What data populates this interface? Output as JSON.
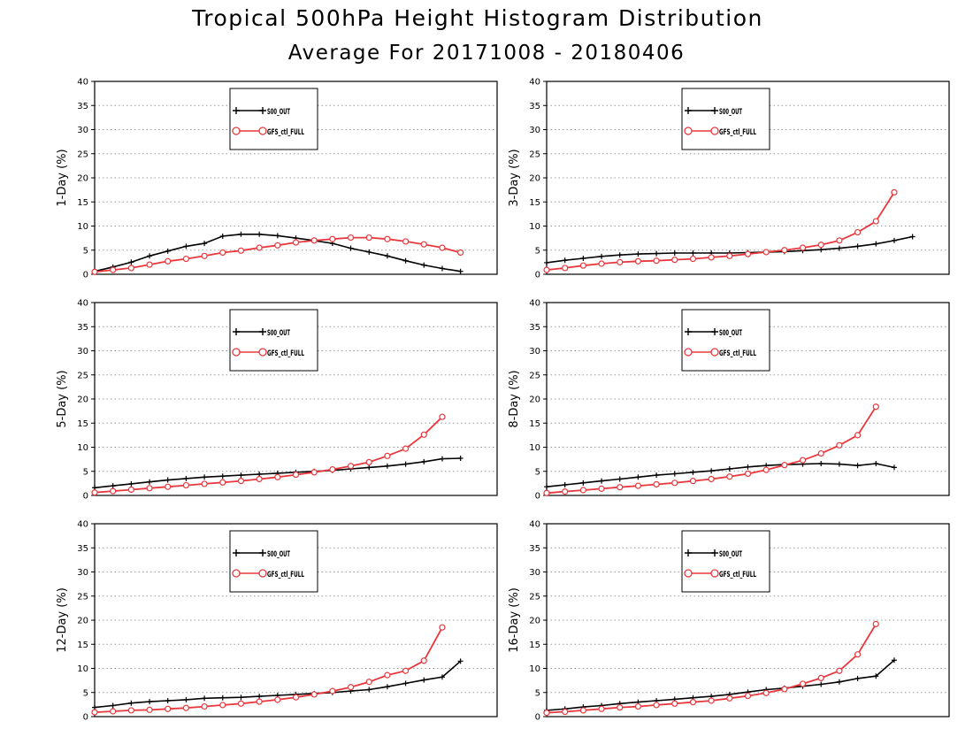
{
  "page": {
    "title": "Tropical 500hPa Height Histogram Distribution",
    "subtitle": "Average For 20171008 - 20180406"
  },
  "colors": {
    "series1": "#000000",
    "series2": "#e8383d",
    "grid": "#9a9a9a"
  },
  "chart_data": [
    {
      "type": "line",
      "ylabel": "1-Day (%)",
      "ylim": [
        0,
        40
      ],
      "yticks": [
        0,
        5,
        10,
        15,
        20,
        25,
        30,
        35,
        40
      ],
      "x": [
        0,
        1,
        2,
        3,
        4,
        5,
        6,
        7,
        8,
        9,
        10,
        11,
        12,
        13,
        14,
        15,
        16,
        17,
        18,
        19,
        20,
        21,
        22
      ],
      "grid": true,
      "legend_position": "top-center",
      "series": [
        {
          "name": "S00_OUT",
          "marker": "plus",
          "values": [
            0.6,
            1.5,
            2.5,
            3.8,
            4.8,
            5.8,
            6.4,
            7.9,
            8.3,
            8.3,
            8.0,
            7.5,
            7.0,
            6.4,
            5.4,
            4.6,
            3.8,
            2.8,
            1.9,
            1.2,
            0.6,
            null,
            null
          ]
        },
        {
          "name": "GFS_ctl_FULL",
          "marker": "circle",
          "values": [
            0.5,
            0.9,
            1.3,
            2.0,
            2.7,
            3.2,
            3.8,
            4.5,
            4.9,
            5.5,
            6.0,
            6.6,
            7.0,
            7.3,
            7.6,
            7.6,
            7.3,
            6.8,
            6.2,
            5.5,
            4.5,
            null,
            null
          ]
        }
      ]
    },
    {
      "type": "line",
      "ylabel": "3-Day (%)",
      "ylim": [
        0,
        40
      ],
      "yticks": [
        0,
        5,
        10,
        15,
        20,
        25,
        30,
        35,
        40
      ],
      "x": [
        0,
        1,
        2,
        3,
        4,
        5,
        6,
        7,
        8,
        9,
        10,
        11,
        12,
        13,
        14,
        15,
        16,
        17,
        18,
        19,
        20,
        21,
        22
      ],
      "grid": true,
      "legend_position": "top-center",
      "series": [
        {
          "name": "S00_OUT",
          "marker": "plus",
          "values": [
            2.4,
            2.9,
            3.3,
            3.7,
            4.0,
            4.2,
            4.3,
            4.4,
            4.4,
            4.4,
            4.4,
            4.5,
            4.6,
            4.7,
            4.9,
            5.1,
            5.4,
            5.8,
            6.3,
            7.0,
            7.8,
            null,
            null
          ]
        },
        {
          "name": "GFS_ctl_FULL",
          "marker": "circle",
          "values": [
            0.9,
            1.3,
            1.8,
            2.2,
            2.5,
            2.7,
            2.8,
            3.0,
            3.2,
            3.5,
            3.8,
            4.2,
            4.6,
            5.0,
            5.5,
            6.1,
            7.0,
            8.7,
            11.0,
            17.0,
            null,
            null,
            null
          ]
        }
      ]
    },
    {
      "type": "line",
      "ylabel": "5-Day (%)",
      "ylim": [
        0,
        40
      ],
      "yticks": [
        0,
        5,
        10,
        15,
        20,
        25,
        30,
        35,
        40
      ],
      "x": [
        0,
        1,
        2,
        3,
        4,
        5,
        6,
        7,
        8,
        9,
        10,
        11,
        12,
        13,
        14,
        15,
        16,
        17,
        18,
        19,
        20,
        21,
        22
      ],
      "grid": true,
      "legend_position": "top-center",
      "series": [
        {
          "name": "S00_OUT",
          "marker": "plus",
          "values": [
            1.6,
            2.0,
            2.4,
            2.8,
            3.2,
            3.5,
            3.8,
            4.0,
            4.2,
            4.4,
            4.6,
            4.8,
            5.0,
            5.2,
            5.5,
            5.8,
            6.1,
            6.5,
            7.0,
            7.6,
            7.7,
            null,
            null
          ]
        },
        {
          "name": "GFS_ctl_FULL",
          "marker": "circle",
          "values": [
            0.6,
            0.9,
            1.2,
            1.5,
            1.8,
            2.1,
            2.4,
            2.7,
            3.0,
            3.4,
            3.8,
            4.3,
            4.8,
            5.4,
            6.1,
            6.9,
            8.2,
            9.7,
            12.6,
            16.3,
            null,
            null,
            null
          ]
        }
      ]
    },
    {
      "type": "line",
      "ylabel": "8-Day (%)",
      "ylim": [
        0,
        40
      ],
      "yticks": [
        0,
        5,
        10,
        15,
        20,
        25,
        30,
        35,
        40
      ],
      "x": [
        0,
        1,
        2,
        3,
        4,
        5,
        6,
        7,
        8,
        9,
        10,
        11,
        12,
        13,
        14,
        15,
        16,
        17,
        18,
        19,
        20,
        21,
        22
      ],
      "grid": true,
      "legend_position": "top-center",
      "series": [
        {
          "name": "S00_OUT",
          "marker": "plus",
          "values": [
            1.8,
            2.2,
            2.6,
            3.0,
            3.4,
            3.8,
            4.2,
            4.5,
            4.8,
            5.1,
            5.5,
            5.9,
            6.2,
            6.4,
            6.5,
            6.6,
            6.5,
            6.2,
            6.6,
            5.8,
            null,
            null,
            null
          ]
        },
        {
          "name": "GFS_ctl_FULL",
          "marker": "circle",
          "values": [
            0.5,
            0.8,
            1.1,
            1.4,
            1.7,
            2.0,
            2.3,
            2.6,
            3.0,
            3.4,
            3.9,
            4.5,
            5.3,
            6.3,
            7.3,
            8.7,
            10.4,
            12.5,
            18.4,
            null,
            null,
            null,
            null
          ]
        }
      ]
    },
    {
      "type": "line",
      "ylabel": "12-Day (%)",
      "ylim": [
        0,
        40
      ],
      "yticks": [
        0,
        5,
        10,
        15,
        20,
        25,
        30,
        35,
        40
      ],
      "x": [
        0,
        1,
        2,
        3,
        4,
        5,
        6,
        7,
        8,
        9,
        10,
        11,
        12,
        13,
        14,
        15,
        16,
        17,
        18,
        19,
        20,
        21,
        22
      ],
      "grid": true,
      "legend_position": "top-center",
      "series": [
        {
          "name": "S00_OUT",
          "marker": "plus",
          "values": [
            1.9,
            2.3,
            2.8,
            3.1,
            3.3,
            3.5,
            3.8,
            3.9,
            4.0,
            4.2,
            4.4,
            4.6,
            4.8,
            5.0,
            5.3,
            5.6,
            6.2,
            6.9,
            7.6,
            8.2,
            11.5,
            null,
            null
          ]
        },
        {
          "name": "GFS_ctl_FULL",
          "marker": "circle",
          "values": [
            0.9,
            1.1,
            1.3,
            1.4,
            1.6,
            1.8,
            2.1,
            2.4,
            2.7,
            3.1,
            3.5,
            4.0,
            4.6,
            5.3,
            6.1,
            7.2,
            8.6,
            9.5,
            11.6,
            18.5,
            null,
            null,
            null
          ]
        }
      ]
    },
    {
      "type": "line",
      "ylabel": "16-Day (%)",
      "ylim": [
        0,
        40
      ],
      "yticks": [
        0,
        5,
        10,
        15,
        20,
        25,
        30,
        35,
        40
      ],
      "x": [
        0,
        1,
        2,
        3,
        4,
        5,
        6,
        7,
        8,
        9,
        10,
        11,
        12,
        13,
        14,
        15,
        16,
        17,
        18,
        19,
        20,
        21,
        22
      ],
      "grid": true,
      "legend_position": "top-center",
      "series": [
        {
          "name": "S00_OUT",
          "marker": "plus",
          "values": [
            1.3,
            1.6,
            2.0,
            2.3,
            2.7,
            3.0,
            3.3,
            3.6,
            3.9,
            4.2,
            4.6,
            5.1,
            5.6,
            5.9,
            6.3,
            6.7,
            7.2,
            7.9,
            8.4,
            11.7,
            null,
            null,
            null
          ]
        },
        {
          "name": "GFS_ctl_FULL",
          "marker": "circle",
          "values": [
            0.8,
            1.0,
            1.3,
            1.6,
            1.9,
            2.1,
            2.4,
            2.7,
            3.0,
            3.3,
            3.8,
            4.3,
            4.9,
            5.7,
            6.8,
            8.0,
            9.5,
            12.9,
            19.2,
            null,
            null,
            null,
            null
          ]
        }
      ]
    }
  ]
}
